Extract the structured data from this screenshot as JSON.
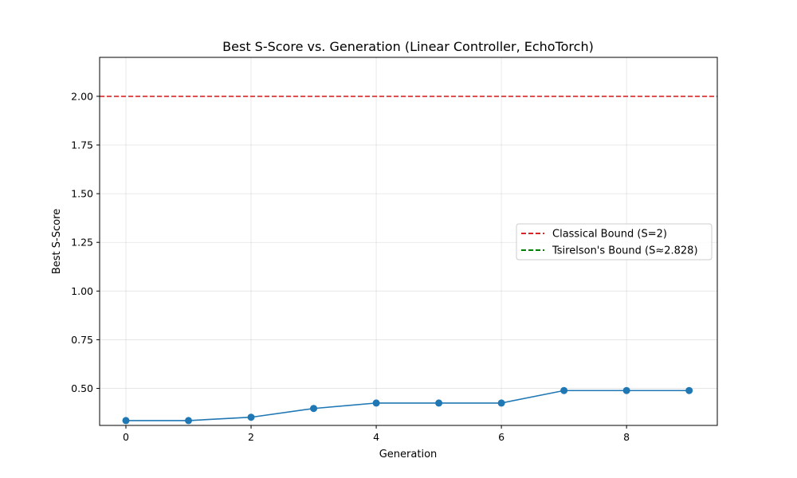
{
  "chart_data": {
    "type": "line",
    "title": "Best S-Score vs. Generation (Linear Controller, EchoTorch)",
    "xlabel": "Generation",
    "ylabel": "Best S-Score",
    "xlim": [
      -0.42,
      9.45
    ],
    "ylim": [
      0.31,
      2.2
    ],
    "xticks": [
      0,
      2,
      4,
      6,
      8
    ],
    "xtick_labels": [
      "0",
      "2",
      "4",
      "6",
      "8"
    ],
    "yticks": [
      0.5,
      0.75,
      1.0,
      1.25,
      1.5,
      1.75,
      2.0
    ],
    "ytick_labels": [
      "0.50",
      "0.75",
      "1.00",
      "1.25",
      "1.50",
      "1.75",
      "2.00"
    ],
    "grid": true,
    "legend_position": "center-right",
    "series": [
      {
        "name": "",
        "color": "#1f77b4",
        "marker": "circle",
        "x": [
          0,
          1,
          2,
          3,
          4,
          5,
          6,
          7,
          8,
          9
        ],
        "y": [
          0.335,
          0.335,
          0.352,
          0.397,
          0.425,
          0.425,
          0.425,
          0.489,
          0.489,
          0.489
        ]
      }
    ],
    "reference_lines": [
      {
        "name": "Classical Bound (S=2)",
        "y": 2.0,
        "color": "#d62728",
        "style": "dashed"
      },
      {
        "name": "Tsirelson's Bound (S≈2.828)",
        "y": 2.828,
        "color": "#008000",
        "style": "dashed"
      }
    ]
  }
}
